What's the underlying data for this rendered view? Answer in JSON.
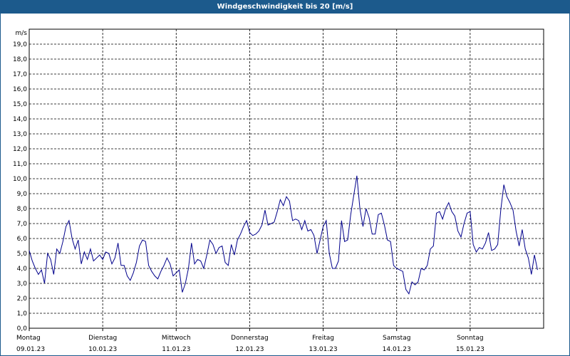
{
  "chart_data": {
    "type": "line",
    "title": "Windgeschwindigkeit bis 20 [m/s]",
    "ylabel": "m/s",
    "xlabel": "",
    "ylim": [
      0,
      20
    ],
    "yticks": [
      "0,0",
      "1,0",
      "2,0",
      "3,0",
      "4,0",
      "5,0",
      "6,0",
      "7,0",
      "8,0",
      "9,0",
      "10,0",
      "11,0",
      "12,0",
      "13,0",
      "14,0",
      "15,0",
      "16,0",
      "17,0",
      "18,0",
      "19,0"
    ],
    "days": [
      {
        "name": "Montag",
        "date": "09.01.23"
      },
      {
        "name": "Dienstag",
        "date": "10.01.23"
      },
      {
        "name": "Mittwoch",
        "date": "11.01.23"
      },
      {
        "name": "Donnerstag",
        "date": "12.01.23"
      },
      {
        "name": "Freitag",
        "date": "13.01.23"
      },
      {
        "name": "Samstag",
        "date": "14.01.23"
      },
      {
        "name": "Sonntag",
        "date": "15.01.23"
      }
    ],
    "grid": true,
    "line_color": "#00008b",
    "series": [
      {
        "name": "Windgeschwindigkeit",
        "hours_step": 1,
        "values": [
          5.2,
          4.5,
          4.0,
          3.6,
          3.9,
          3.0,
          5.0,
          4.6,
          3.6,
          5.3,
          5.0,
          5.8,
          6.8,
          7.2,
          6.0,
          5.3,
          5.9,
          4.3,
          5.1,
          4.6,
          5.3,
          4.5,
          4.7,
          4.9,
          4.6,
          5.1,
          5.0,
          4.3,
          4.7,
          5.7,
          4.2,
          4.2,
          3.5,
          3.2,
          3.7,
          4.4,
          5.5,
          5.9,
          5.8,
          4.2,
          3.8,
          3.5,
          3.3,
          3.8,
          4.2,
          4.7,
          4.3,
          3.5,
          3.7,
          3.9,
          2.4,
          3.0,
          4.0,
          5.7,
          4.3,
          4.6,
          4.5,
          4.0,
          4.9,
          5.9,
          5.6,
          5.0,
          5.4,
          5.5,
          4.4,
          4.2,
          5.6,
          4.9,
          5.9,
          6.3,
          6.8,
          7.2,
          6.4,
          6.2,
          6.3,
          6.5,
          6.9,
          7.9,
          6.9,
          7.0,
          7.1,
          7.8,
          8.6,
          8.2,
          8.8,
          8.5,
          7.2,
          7.3,
          7.2,
          6.6,
          7.2,
          6.5,
          6.6,
          6.2,
          5.0,
          5.9,
          6.8,
          7.2,
          5.0,
          4.0,
          4.0,
          4.5,
          7.2,
          5.8,
          5.9,
          7.6,
          8.9,
          10.2,
          8.0,
          6.8,
          8.0,
          7.4,
          6.3,
          6.3,
          7.6,
          7.7,
          6.9,
          5.9,
          5.8,
          4.2,
          4.0,
          3.9,
          3.8,
          2.6,
          2.3,
          3.1,
          2.9,
          3.1,
          4.0,
          3.9,
          4.2,
          5.3,
          5.5,
          7.7,
          7.8,
          7.3,
          8.0,
          8.4,
          7.8,
          7.5,
          6.5,
          6.1,
          7.0,
          7.7,
          7.8,
          5.6,
          5.1,
          5.4,
          5.3,
          5.7,
          6.4,
          5.2,
          5.3,
          5.6,
          7.9,
          9.6,
          8.8,
          8.4,
          7.9,
          6.5,
          5.5,
          6.6,
          5.3,
          4.7,
          3.6,
          4.9,
          3.9
        ]
      }
    ]
  }
}
